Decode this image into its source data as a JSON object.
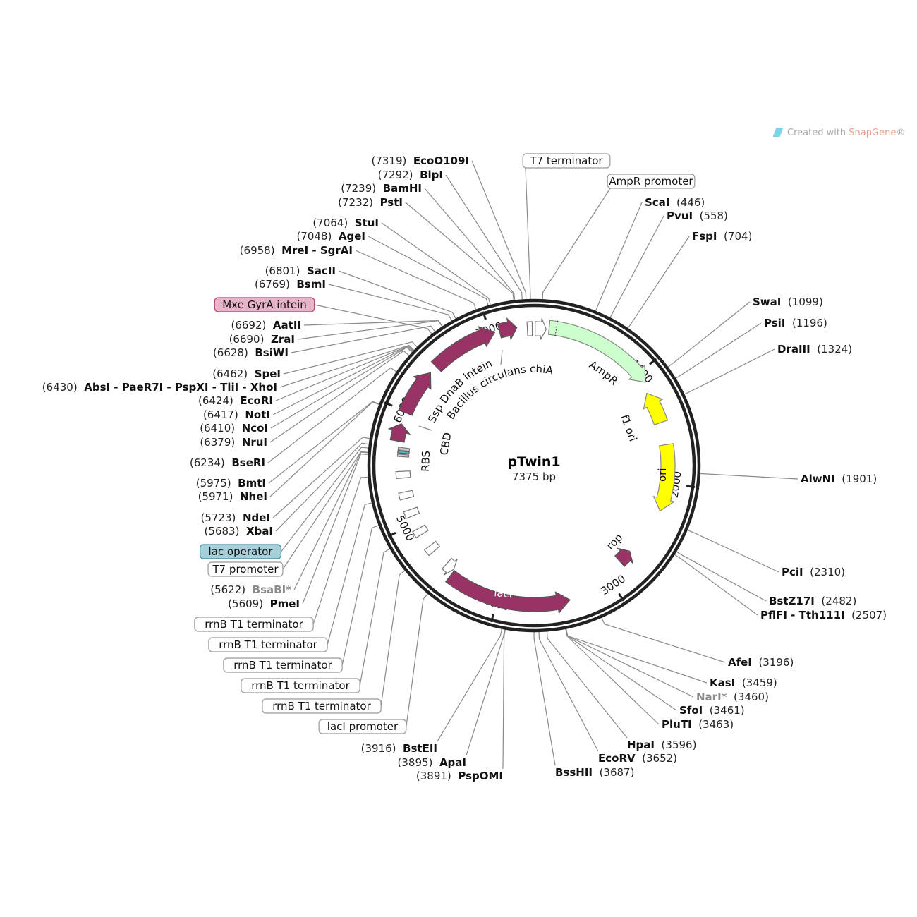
{
  "plasmid": {
    "name": "pTwin1",
    "length_label": "7375 bp",
    "length": 7375
  },
  "logo": {
    "prefix": "Created with ",
    "brand": "SnapGene",
    "mark": "®"
  },
  "ticks": [
    "1000",
    "2000",
    "3000",
    "4000",
    "5000",
    "6000",
    "7000"
  ],
  "enzymes": [
    {
      "name": "EcoO109I",
      "pos": 7319
    },
    {
      "name": "BlpI",
      "pos": 7292
    },
    {
      "name": "BamHI",
      "pos": 7239
    },
    {
      "name": "PstI",
      "pos": 7232
    },
    {
      "name": "StuI",
      "pos": 7064
    },
    {
      "name": "AgeI",
      "pos": 7048
    },
    {
      "name": "MreI - SgrAI",
      "pos": 6958
    },
    {
      "name": "SacII",
      "pos": 6801
    },
    {
      "name": "BsmI",
      "pos": 6769
    },
    {
      "name": "AatII",
      "pos": 6692
    },
    {
      "name": "ZraI",
      "pos": 6690
    },
    {
      "name": "BsiWI",
      "pos": 6628
    },
    {
      "name": "SpeI",
      "pos": 6462
    },
    {
      "name": "AbsI - PaeR7I - PspXI - TliI - XhoI",
      "pos": 6430
    },
    {
      "name": "EcoRI",
      "pos": 6424
    },
    {
      "name": "NotI",
      "pos": 6417
    },
    {
      "name": "NcoI",
      "pos": 6410
    },
    {
      "name": "NruI",
      "pos": 6379
    },
    {
      "name": "BseRI",
      "pos": 6234
    },
    {
      "name": "BmtI",
      "pos": 5975
    },
    {
      "name": "NheI",
      "pos": 5971
    },
    {
      "name": "NdeI",
      "pos": 5723
    },
    {
      "name": "XbaI",
      "pos": 5683
    },
    {
      "name": "BsaBI*",
      "pos": 5622,
      "dim": true
    },
    {
      "name": "PmeI",
      "pos": 5609
    },
    {
      "name": "BstEII",
      "pos": 3916
    },
    {
      "name": "ApaI",
      "pos": 3895
    },
    {
      "name": "PspOMI",
      "pos": 3891
    },
    {
      "name": "ScaI",
      "pos": 446
    },
    {
      "name": "PvuI",
      "pos": 558
    },
    {
      "name": "FspI",
      "pos": 704
    },
    {
      "name": "SwaI",
      "pos": 1099
    },
    {
      "name": "PsiI",
      "pos": 1196
    },
    {
      "name": "DraIII",
      "pos": 1324
    },
    {
      "name": "AlwNI",
      "pos": 1901
    },
    {
      "name": "PciI",
      "pos": 2310
    },
    {
      "name": "BstZ17I",
      "pos": 2482
    },
    {
      "name": "PflFI - Tth111I",
      "pos": 2507
    },
    {
      "name": "AfeI",
      "pos": 3196
    },
    {
      "name": "KasI",
      "pos": 3459
    },
    {
      "name": "NarI*",
      "pos": 3460,
      "dim": true
    },
    {
      "name": "SfoI",
      "pos": 3461
    },
    {
      "name": "PluTI",
      "pos": 3463
    },
    {
      "name": "HpaI",
      "pos": 3596
    },
    {
      "name": "EcoRV",
      "pos": 3652
    },
    {
      "name": "BssHII",
      "pos": 3687
    }
  ],
  "feature_labels": [
    {
      "name": "T7 terminator",
      "pos": 7350,
      "fill": "#ffffff",
      "stroke": "#999999"
    },
    {
      "name": "AmpR promoter",
      "pos": 60,
      "fill": "#ffffff",
      "stroke": "#999999"
    },
    {
      "name": "Mxe GyrA intein",
      "pos": 6600,
      "fill": "#e6b3c9",
      "stroke": "#b0446f"
    },
    {
      "name": "lac operator",
      "pos": 5655,
      "fill": "#a6cfd9",
      "stroke": "#3a8aa0"
    },
    {
      "name": "T7 promoter",
      "pos": 5625,
      "fill": "#ffffff",
      "stroke": "#999999"
    },
    {
      "name": "rrnB T1 terminator",
      "pos": 5450,
      "fill": "#ffffff",
      "stroke": "#999999"
    },
    {
      "name": "rrnB T1 terminator",
      "pos": 5265,
      "fill": "#ffffff",
      "stroke": "#999999"
    },
    {
      "name": "rrnB T1 terminator",
      "pos": 5100,
      "fill": "#ffffff",
      "stroke": "#999999"
    },
    {
      "name": "rrnB T1 terminator",
      "pos": 4916,
      "fill": "#ffffff",
      "stroke": "#999999"
    },
    {
      "name": "rrnB T1 terminator",
      "pos": 4730,
      "fill": "#ffffff",
      "stroke": "#999999"
    },
    {
      "name": "lacI promoter",
      "pos": 4500,
      "fill": "#ffffff",
      "stroke": "#999999"
    }
  ],
  "features": [
    {
      "name": "AmpR promoter",
      "start": 10,
      "end": 105,
      "dir": 1,
      "fill": "#ffffff",
      "stroke": "#777777"
    },
    {
      "name": "T7 terminator",
      "start": 7318,
      "end": 7360,
      "dir": 0,
      "fill": "#ffffff",
      "stroke": "#777777"
    },
    {
      "name": "AmpR",
      "start": 129,
      "end": 1090,
      "dir": 1,
      "fill": "#ccffcc",
      "stroke": "#888888"
    },
    {
      "name": "f1 ori",
      "start": 1175,
      "end": 1460,
      "dir": -1,
      "fill": "#ffff00",
      "stroke": "#888888"
    },
    {
      "name": "ori",
      "start": 1660,
      "end": 2250,
      "dir": 1,
      "fill": "#ffff00",
      "stroke": "#888888"
    },
    {
      "name": "rop",
      "start": 2700,
      "end": 2830,
      "dir": -1,
      "fill": "#993366",
      "stroke": "#555555"
    },
    {
      "name": "lacI",
      "start": 3380,
      "end": 4450,
      "dir": -1,
      "fill": "#993366",
      "stroke": "#555555"
    },
    {
      "name": "lacI promoter",
      "start": 4460,
      "end": 4540,
      "dir": -1,
      "fill": "#ffffff",
      "stroke": "#777777"
    },
    {
      "name": "rrnB T1 terminator",
      "start": 4700,
      "end": 4760,
      "dir": 0,
      "fill": "#ffffff",
      "stroke": "#777777"
    },
    {
      "name": "rrnB T1 terminator",
      "start": 4886,
      "end": 4946,
      "dir": 0,
      "fill": "#ffffff",
      "stroke": "#777777"
    },
    {
      "name": "rrnB T1 terminator",
      "start": 5070,
      "end": 5130,
      "dir": 0,
      "fill": "#ffffff",
      "stroke": "#777777"
    },
    {
      "name": "rrnB T1 terminator",
      "start": 5235,
      "end": 5295,
      "dir": 0,
      "fill": "#ffffff",
      "stroke": "#777777"
    },
    {
      "name": "rrnB T1 terminator",
      "start": 5420,
      "end": 5480,
      "dir": 0,
      "fill": "#ffffff",
      "stroke": "#777777"
    },
    {
      "name": "T7 promoter",
      "start": 5610,
      "end": 5630,
      "dir": 0,
      "fill": "#cccccc",
      "stroke": "#777777"
    },
    {
      "name": "lac operator",
      "start": 5640,
      "end": 5660,
      "dir": 0,
      "fill": "#4fb0c6",
      "stroke": "#555555"
    },
    {
      "name": "RBS",
      "start": 5665,
      "end": 5690,
      "dir": 0,
      "fill": "#cccccc",
      "stroke": "#777777"
    },
    {
      "name": "CBD",
      "start": 5740,
      "end": 5890,
      "dir": 1,
      "fill": "#993366",
      "stroke": "#555555"
    },
    {
      "name": "Ssp DnaB intein",
      "start": 5990,
      "end": 6390,
      "dir": 1,
      "fill": "#993366",
      "stroke": "#555555"
    },
    {
      "name": "Mxe GyrA intein",
      "start": 6460,
      "end": 7040,
      "dir": 1,
      "fill": "#993366",
      "stroke": "#555555"
    },
    {
      "name": "Bacillus circulans chiA",
      "start": 7080,
      "end": 7230,
      "dir": 1,
      "fill": "#993366",
      "stroke": "#555555"
    }
  ],
  "map_labels": {
    "ampr": "AmpR",
    "f1ori": "f1 ori",
    "ori": "ori",
    "rop": "rop",
    "laci": "lacI",
    "cbd": "CBD",
    "rbs": "RBS",
    "ssp": "Ssp DnaB intein",
    "chia": "Bacillus circulans chiA"
  }
}
